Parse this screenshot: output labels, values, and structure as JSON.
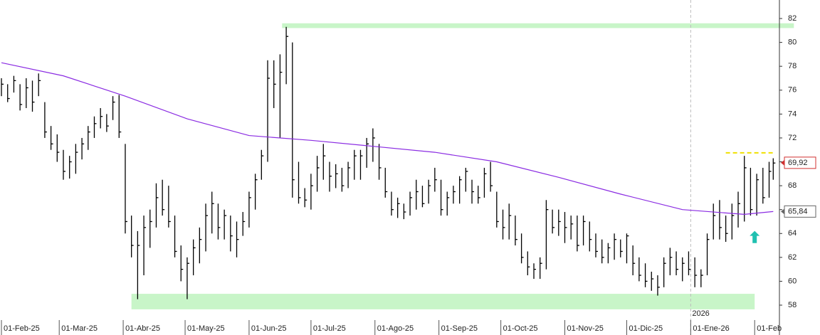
{
  "chart_data": {
    "type": "ohlc",
    "x": [
      0,
      3,
      6,
      9,
      12,
      15,
      18,
      21,
      24,
      27,
      30,
      33,
      36,
      39,
      42,
      45,
      48,
      51,
      54,
      57,
      60,
      63,
      66,
      69,
      72,
      75,
      78,
      81,
      84,
      87,
      90,
      93,
      96,
      99,
      102,
      105,
      108,
      111,
      114,
      117,
      120,
      123,
      126,
      129,
      132,
      135,
      138,
      141,
      144,
      147,
      150,
      153,
      156,
      159,
      162,
      165,
      168,
      171,
      174,
      177,
      180,
      183,
      186,
      189,
      192,
      195,
      198,
      201,
      204,
      207,
      210,
      213,
      216,
      219,
      222,
      225,
      228,
      231,
      234,
      237,
      240,
      243,
      246,
      249,
      252,
      255,
      258,
      261,
      264,
      267,
      270,
      273,
      276,
      279,
      282,
      285,
      288,
      291,
      294,
      297,
      300,
      303,
      306,
      309,
      312,
      315,
      318,
      321,
      324,
      327,
      330,
      333,
      336,
      339,
      342,
      345,
      348,
      351,
      354,
      357,
      360,
      363,
      366,
      369,
      372,
      374
    ],
    "high": [
      77.0,
      76.5,
      77.2,
      76.5,
      77.0,
      76.8,
      77.4,
      75.0,
      73.0,
      72.3,
      71.0,
      70.5,
      71.5,
      72.0,
      73.0,
      73.8,
      74.5,
      74.0,
      75.5,
      75.6,
      71.5,
      65.5,
      64.2,
      65.5,
      66.0,
      68.2,
      68.5,
      68.0,
      65.5,
      63.0,
      62.0,
      63.5,
      64.5,
      66.5,
      67.5,
      66.5,
      66.0,
      65.5,
      65.0,
      65.8,
      67.5,
      69.0,
      71.0,
      78.5,
      78.5,
      79.0,
      81.3,
      80.0,
      70.0,
      67.8,
      69.0,
      70.5,
      71.5,
      70.0,
      69.8,
      69.5,
      70.0,
      71.0,
      71.0,
      72.0,
      72.8,
      71.5,
      69.5,
      67.5,
      67.0,
      66.5,
      67.5,
      68.5,
      68.0,
      68.5,
      69.5,
      68.5,
      67.5,
      68.0,
      68.8,
      69.5,
      68.5,
      68.0,
      69.5,
      70.0,
      67.5,
      66.0,
      66.5,
      65.5,
      64.0,
      62.5,
      61.5,
      62.0,
      66.8,
      66.0,
      66.0,
      65.8,
      65.5,
      65.5,
      65.5,
      65.0,
      64.0,
      63.5,
      63.2,
      64.0,
      63.5,
      64.0,
      63.0,
      62.0,
      61.5,
      60.8,
      60.5,
      62.0,
      62.8,
      62.5,
      62.0,
      62.5,
      62.0,
      61.0,
      64.0,
      66.5,
      66.8,
      65.5,
      66.5,
      67.5,
      70.5,
      69.5,
      69.0,
      69.5,
      70.0,
      70.3
    ],
    "low": [
      75.5,
      75.0,
      75.8,
      74.3,
      74.5,
      74.2,
      75.5,
      72.0,
      71.0,
      70.0,
      68.5,
      68.6,
      69.0,
      70.2,
      71.0,
      72.0,
      72.8,
      72.5,
      73.5,
      72.0,
      64.0,
      62.0,
      58.5,
      60.5,
      62.8,
      64.5,
      65.5,
      64.5,
      62.0,
      60.0,
      58.5,
      60.5,
      61.5,
      62.5,
      64.0,
      63.5,
      63.5,
      62.5,
      62.0,
      63.8,
      64.5,
      66.0,
      68.5,
      70.0,
      74.5,
      72.0,
      76.5,
      67.0,
      66.5,
      66.2,
      66.0,
      67.5,
      68.5,
      67.5,
      67.8,
      67.5,
      67.8,
      68.5,
      68.5,
      69.5,
      70.0,
      68.5,
      67.0,
      65.5,
      65.3,
      65.2,
      65.5,
      66.0,
      66.2,
      66.5,
      67.5,
      65.5,
      65.5,
      66.5,
      66.5,
      67.5,
      66.5,
      66.5,
      67.0,
      67.5,
      64.5,
      63.5,
      63.5,
      63.0,
      61.5,
      60.5,
      60.2,
      60.2,
      61.0,
      64.0,
      63.8,
      63.2,
      63.5,
      62.5,
      63.0,
      62.5,
      62.0,
      61.5,
      61.5,
      61.8,
      62.0,
      61.5,
      60.5,
      60.0,
      59.5,
      59.2,
      58.8,
      59.5,
      60.5,
      60.5,
      60.0,
      60.5,
      59.5,
      59.5,
      60.5,
      63.5,
      63.5,
      63.3,
      63.5,
      64.5,
      65.0,
      65.5,
      65.5,
      66.5,
      67.0,
      68.5
    ],
    "close": [
      76.5,
      75.3,
      76.8,
      74.8,
      76.2,
      75.0,
      76.8,
      72.5,
      71.5,
      70.8,
      69.2,
      70.0,
      70.8,
      71.5,
      72.5,
      73.2,
      73.8,
      73.0,
      75.0,
      72.5,
      65.0,
      63.0,
      63.0,
      64.5,
      65.0,
      67.0,
      66.0,
      65.0,
      62.5,
      61.0,
      61.5,
      62.8,
      63.5,
      65.5,
      66.5,
      64.5,
      65.5,
      63.8,
      63.5,
      65.0,
      67.0,
      68.5,
      70.5,
      77.0,
      76.5,
      77.5,
      80.5,
      68.5,
      67.0,
      66.8,
      68.0,
      69.5,
      70.5,
      68.8,
      69.0,
      68.0,
      69.5,
      70.5,
      70.5,
      71.5,
      72.0,
      69.5,
      67.5,
      66.0,
      66.5,
      65.8,
      67.0,
      67.5,
      66.5,
      68.0,
      68.5,
      66.0,
      67.0,
      67.5,
      68.5,
      69.2,
      67.5,
      67.0,
      69.0,
      68.0,
      65.0,
      64.5,
      65.5,
      63.5,
      62.0,
      61.2,
      61.0,
      61.5,
      66.0,
      64.5,
      65.0,
      64.5,
      64.8,
      63.0,
      65.0,
      63.5,
      62.5,
      62.0,
      62.8,
      63.5,
      62.5,
      63.8,
      61.5,
      60.5,
      60.0,
      60.2,
      59.5,
      61.5,
      62.0,
      61.0,
      61.5,
      61.0,
      60.5,
      60.5,
      63.5,
      65.5,
      64.5,
      64.0,
      65.5,
      66.5,
      69.5,
      66.0,
      68.5,
      67.0,
      69.2,
      69.9
    ],
    "bar_color": "#000000",
    "moving_average": {
      "color": "#8a2be2",
      "x": [
        0,
        30,
        60,
        90,
        120,
        150,
        180,
        210,
        240,
        270,
        300,
        330,
        360,
        374
      ],
      "values": [
        78.3,
        77.2,
        75.5,
        73.6,
        72.2,
        71.8,
        71.3,
        70.8,
        70.0,
        68.7,
        67.3,
        66.0,
        65.6,
        65.84
      ]
    },
    "xlim": [
      -0.7,
      377
    ],
    "ylim": [
      55.5,
      83.55
    ],
    "yticks": [
      58,
      60,
      62,
      64,
      66,
      68,
      70,
      72,
      74,
      76,
      78,
      80,
      82
    ],
    "xticks": [
      {
        "value": 0,
        "label": "01-Feb-25"
      },
      {
        "value": 28,
        "label": "01-Mar-25"
      },
      {
        "value": 59,
        "label": "01-Abr-25"
      },
      {
        "value": 89,
        "label": "01-May-25"
      },
      {
        "value": 120,
        "label": "01-Jun-25"
      },
      {
        "value": 150,
        "label": "01-Jul-25"
      },
      {
        "value": 181,
        "label": "01-Ago-25"
      },
      {
        "value": 212,
        "label": "01-Sep-25"
      },
      {
        "value": 242,
        "label": "01-Oct-25"
      },
      {
        "value": 273,
        "label": "01-Nov-25"
      },
      {
        "value": 303,
        "label": "01-Dic-25"
      },
      {
        "value": 334,
        "label": "01-Ene-26"
      },
      {
        "value": 365,
        "label": "01-Feb"
      }
    ],
    "year_marker": {
      "x": 334,
      "label": "2026"
    },
    "price_labels": [
      {
        "value": 69.92,
        "label": "69,92",
        "color": "#d03030"
      },
      {
        "value": 65.84,
        "label": "65,84",
        "color": "#666666"
      }
    ],
    "resistance_band": {
      "x": [
        136,
        384
      ],
      "y": [
        81.2,
        81.6
      ],
      "color": "#c8f5c8"
    },
    "support_band": {
      "x": [
        63,
        365
      ],
      "y": [
        57.65,
        58.95
      ],
      "color": "#c8f5c8"
    },
    "dashed_level": {
      "x": [
        351,
        375
      ],
      "value": 70.75,
      "color": "#f0e000"
    },
    "arrow": {
      "x": 365,
      "y": [
        63.2,
        64.1
      ],
      "color": "#20c0b0"
    }
  }
}
